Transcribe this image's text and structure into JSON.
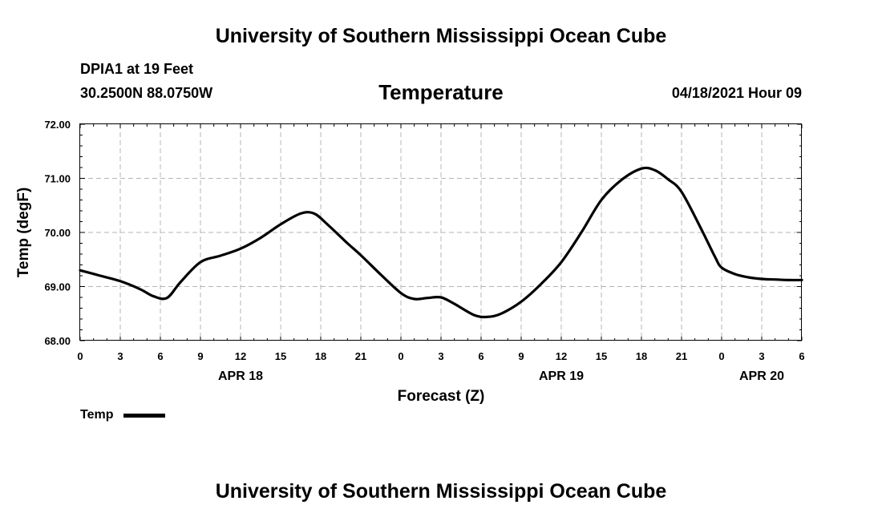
{
  "header": {
    "title_top": "University of Southern Mississippi Ocean Cube",
    "station": "DPIA1 at 19 Feet",
    "coords": "30.2500N  88.0750W",
    "datetime": "04/18/2021 Hour 09"
  },
  "footer": {
    "title_bottom": "University of Southern Mississippi Ocean Cube"
  },
  "legend": {
    "label": "Temp"
  },
  "colors": {
    "line": "#000000",
    "grid": "#b4b4b4"
  },
  "chart_data": {
    "type": "line",
    "title": "Temperature",
    "xlabel": "Forecast (Z)",
    "ylabel": "Temp (degF)",
    "ylim": [
      68,
      72
    ],
    "xlim": [
      0,
      54
    ],
    "x_tick_values": [
      0,
      3,
      6,
      9,
      12,
      15,
      18,
      21,
      24,
      27,
      30,
      33,
      36,
      39,
      42,
      45,
      48,
      51,
      54
    ],
    "x_tick_labels": [
      "0",
      "3",
      "6",
      "9",
      "12",
      "15",
      "18",
      "21",
      "0",
      "3",
      "6",
      "9",
      "12",
      "15",
      "18",
      "21",
      "0",
      "3",
      "6"
    ],
    "y_tick_values": [
      68,
      69,
      70,
      71,
      72
    ],
    "y_tick_labels": [
      "68.00",
      "69.00",
      "70.00",
      "71.00",
      "72.00"
    ],
    "day_labels": [
      {
        "hour": 12,
        "label": "APR 18"
      },
      {
        "hour": 36,
        "label": "APR 19"
      },
      {
        "hour": 51,
        "label": "APR 20"
      }
    ],
    "grid": true,
    "legend_position": "bottom-left",
    "series": [
      {
        "name": "Temp",
        "x": [
          0,
          1.5,
          3,
          4.5,
          5.5,
          6.5,
          7.5,
          9,
          10.5,
          12,
          13.5,
          15,
          16.5,
          17.5,
          18.5,
          20,
          21,
          22.5,
          24,
          25,
          26,
          27,
          28,
          29.5,
          30.5,
          31.5,
          33,
          34.5,
          36,
          37.5,
          39,
          40.5,
          42,
          43,
          44,
          45,
          46.5,
          47.5,
          48,
          49,
          50,
          51,
          52,
          53,
          54
        ],
        "values": [
          69.3,
          69.2,
          69.1,
          68.95,
          68.82,
          68.79,
          69.08,
          69.45,
          69.57,
          69.7,
          69.9,
          70.15,
          70.35,
          70.35,
          70.15,
          69.8,
          69.58,
          69.22,
          68.88,
          68.77,
          68.79,
          68.8,
          68.68,
          68.47,
          68.44,
          68.5,
          68.72,
          69.05,
          69.45,
          70.0,
          70.6,
          70.97,
          71.18,
          71.15,
          70.98,
          70.75,
          70.05,
          69.55,
          69.35,
          69.23,
          69.17,
          69.14,
          69.13,
          69.12,
          69.12
        ]
      }
    ]
  }
}
